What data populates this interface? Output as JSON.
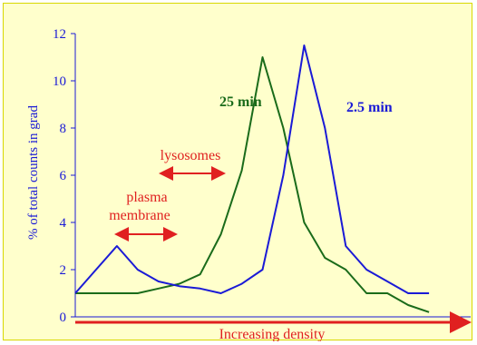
{
  "chart_data": {
    "type": "line",
    "ylabel": "% of total counts in grad",
    "xlabel": "Increasing density",
    "ylim": [
      0,
      12
    ],
    "yticks": [
      "0",
      "2",
      "4",
      "6",
      "8",
      "10",
      "12"
    ],
    "grid": false,
    "x": [
      1,
      2,
      3,
      4,
      5,
      6,
      7,
      8,
      9,
      10,
      11,
      12,
      13,
      14,
      15,
      16,
      17,
      18,
      19
    ],
    "series": [
      {
        "name": "25 min",
        "color": "#1a6b1a",
        "values": [
          1,
          1,
          1,
          1,
          1.2,
          1.4,
          1.8,
          3.5,
          6.2,
          11,
          8,
          4,
          2.5,
          2,
          1,
          1,
          0.5,
          0.2,
          null
        ]
      },
      {
        "name": "2.5 min",
        "color": "#1a1ad6",
        "values": [
          1,
          2,
          3,
          2,
          1.5,
          1.3,
          1.2,
          1,
          1.4,
          2,
          6,
          11.5,
          8,
          3,
          2,
          1.5,
          1,
          1,
          null
        ]
      }
    ],
    "annotations": [
      {
        "text": "lysosomes",
        "color": "#e02020"
      },
      {
        "text": "plasma",
        "color": "#e02020"
      },
      {
        "text": "membrane",
        "color": "#e02020"
      }
    ]
  }
}
